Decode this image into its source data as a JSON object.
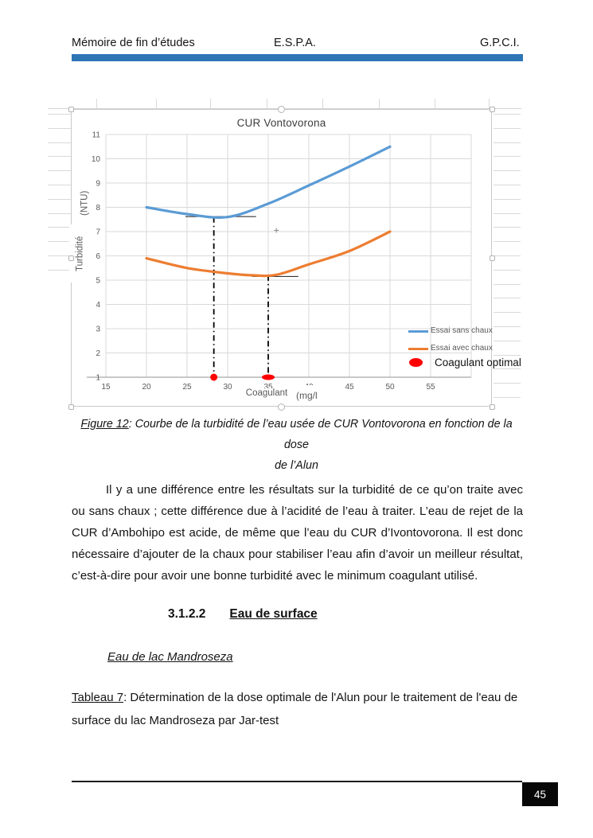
{
  "header": {
    "left": "Mémoire de fin d’études",
    "center": "E.S.P.A.",
    "right": "G.P.C.I.",
    "bar_color": "#2E75B6"
  },
  "chart_data": {
    "type": "line",
    "title": "CUR Vontovorona",
    "xlabel": "Coagulant (mg/l",
    "ylabel": "Turbidité (NTU)",
    "xlabel_parts": [
      "Coagulant",
      "(mg/l"
    ],
    "ylabel_parts": [
      "(NTU)",
      "Turbidité"
    ],
    "xlim": [
      15,
      60
    ],
    "ylim": [
      1,
      11
    ],
    "x_ticks": [
      15,
      20,
      25,
      30,
      35,
      40,
      45,
      50,
      55
    ],
    "y_ticks": [
      1,
      2,
      3,
      4,
      5,
      6,
      7,
      8,
      9,
      10,
      11
    ],
    "grid": true,
    "legend_position": "inside-right",
    "series": [
      {
        "name": "Essai sans chaux",
        "color": "#5B9BD5",
        "x": [
          20,
          25,
          30,
          35,
          40,
          45,
          50
        ],
        "y": [
          8.0,
          7.72,
          7.6,
          8.15,
          8.9,
          9.68,
          10.5
        ]
      },
      {
        "name": "Essai avec chaux",
        "color": "#ED7D31",
        "x": [
          20,
          25,
          30,
          33,
          36,
          40,
          45,
          50
        ],
        "y": [
          5.9,
          5.5,
          5.28,
          5.2,
          5.22,
          5.65,
          6.2,
          7.0
        ]
      }
    ],
    "optimal_markers": {
      "name": "Coagulant optimal",
      "color": "#FF0000",
      "points": [
        {
          "x": 28.3,
          "y": 1,
          "rx": 4.5,
          "ry": 4.5
        },
        {
          "x": 35,
          "y": 1,
          "rx": 8,
          "ry": 3.5
        }
      ]
    },
    "annotation_vlines": [
      {
        "x": 28.3,
        "y_from": 7.6,
        "y_to": 1
      },
      {
        "x": 35,
        "y_from": 5.2,
        "y_to": 1
      }
    ],
    "annotation_hlines": [
      {
        "y": 7.62,
        "x_from": 24.8,
        "x_to": 33.5
      },
      {
        "y": 5.15,
        "x_from": 33,
        "x_to": 38.7
      }
    ],
    "annotation_marks": [
      {
        "x": 36,
        "y": 7.05,
        "type": "plus"
      }
    ],
    "colors": {
      "gridline": "#d9d9d9",
      "axis": "#a6a6a6",
      "tick_text": "#595959"
    }
  },
  "figure_caption": {
    "label": "Figure 12",
    "line1_rest": ": Courbe de la turbidité de l’eau usée de CUR Vontovorona en fonction de la dose",
    "line2": "de l’Alun"
  },
  "paragraph": "Il y a une différence entre les résultats sur la turbidité de ce qu’on traite avec ou sans chaux ; cette différence due à l’acidité de l’eau à traiter. L’eau de rejet de la CUR d’Ambohipo est acide, de même que l’eau du CUR d’Ivontovorona. Il est donc nécessaire d’ajouter de la chaux pour stabiliser l’eau afin d’avoir un meilleur résultat, c’est-à-dire pour avoir une bonne turbidité avec le  minimum coagulant utilisé.",
  "section_heading": {
    "number": "3.1.2.2",
    "title": "Eau de surface"
  },
  "subsection_heading": "Eau de lac Mandroseza",
  "table_caption": {
    "label": "Tableau 7",
    "line1_rest": ": Détermination de la dose optimale de l'Alun  pour le traitement de l'eau de",
    "line2": "surface du lac Mandroseza par Jar-test"
  },
  "footer": {
    "page_number": "45"
  }
}
